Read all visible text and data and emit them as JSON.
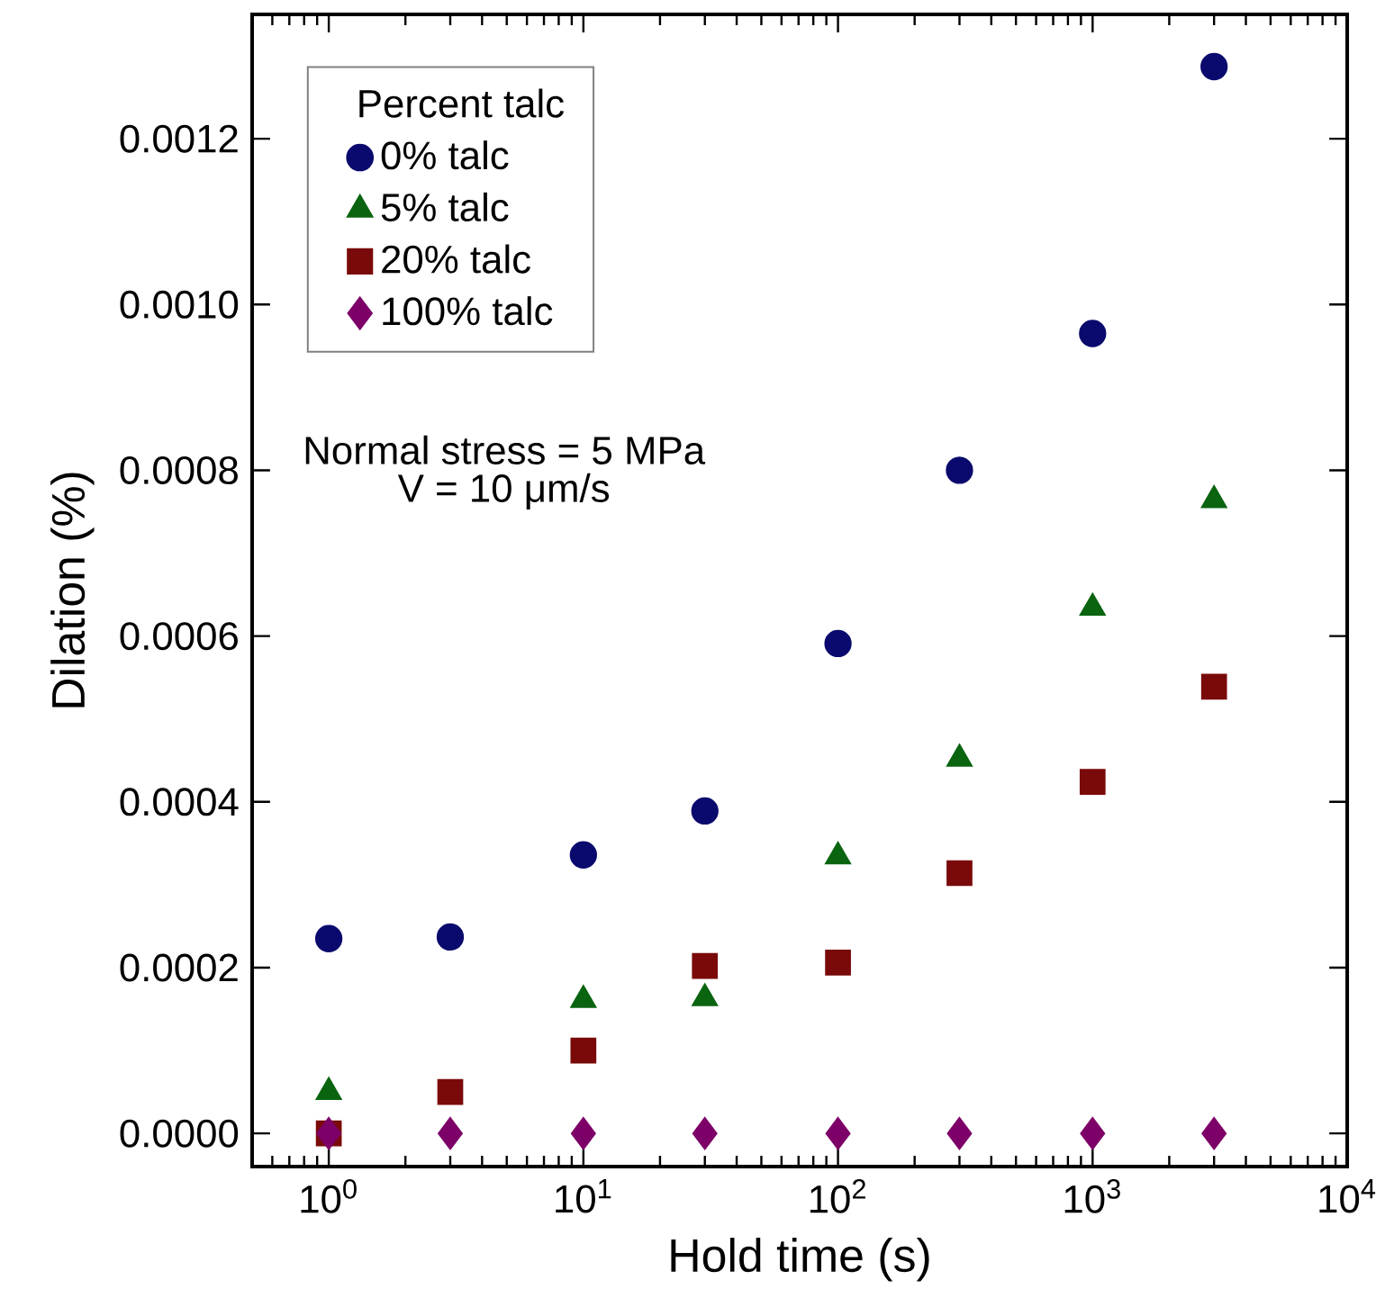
{
  "chart_data": {
    "type": "scatter",
    "xlabel": "Hold time (s)",
    "ylabel": "Dilation (%)",
    "legend_title": "Percent talc",
    "annotations": [
      "Normal stress = 5 MPa",
      "V = 10 μm/s"
    ],
    "x": [
      1,
      3,
      10,
      30,
      100,
      300,
      1000,
      3000
    ],
    "series": [
      {
        "name": "0% talc",
        "color": "#0a0a6e",
        "marker": "circle",
        "values": [
          0.000235,
          0.000237,
          0.000336,
          0.000389,
          0.000591,
          0.0008,
          0.000965,
          0.001287
        ]
      },
      {
        "name": "5% talc",
        "color": "#0a6410",
        "marker": "triangle",
        "values": [
          5e-05,
          null,
          0.000161,
          0.000163,
          0.000334,
          0.000452,
          0.000634,
          0.000764
        ]
      },
      {
        "name": "20% talc",
        "color": "#7a0a0a",
        "marker": "square",
        "values": [
          0,
          5e-05,
          0.0001,
          0.000202,
          0.000206,
          0.000314,
          0.000424,
          0.000539
        ]
      },
      {
        "name": "100% talc",
        "color": "#7d0068",
        "marker": "diamond",
        "values": [
          0,
          0,
          0,
          0,
          0,
          0,
          0,
          0
        ]
      }
    ],
    "log": "x",
    "xlim": [
      0.5,
      10000
    ],
    "xticks": [
      {
        "value": 1,
        "label": "10$^{0}$"
      },
      {
        "value": 10,
        "label": "10$^{1}$"
      },
      {
        "value": 100,
        "label": "10$^{2}$"
      },
      {
        "value": 1000,
        "label": "10$^{3}$"
      },
      {
        "value": 10000,
        "label": "10$^{4}$"
      }
    ],
    "ylim": [
      -4e-05,
      0.00135
    ],
    "yticks": [
      {
        "value": 0,
        "label": "0.0000"
      },
      {
        "value": 0.0002,
        "label": "0.0002"
      },
      {
        "value": 0.0004,
        "label": "0.0004"
      },
      {
        "value": 0.0006,
        "label": "0.0006"
      },
      {
        "value": 0.0008,
        "label": "0.0008"
      },
      {
        "value": 0.001,
        "label": "0.0010"
      },
      {
        "value": 0.0012,
        "label": "0.0012"
      }
    ],
    "grid": false,
    "legend": "top left"
  }
}
